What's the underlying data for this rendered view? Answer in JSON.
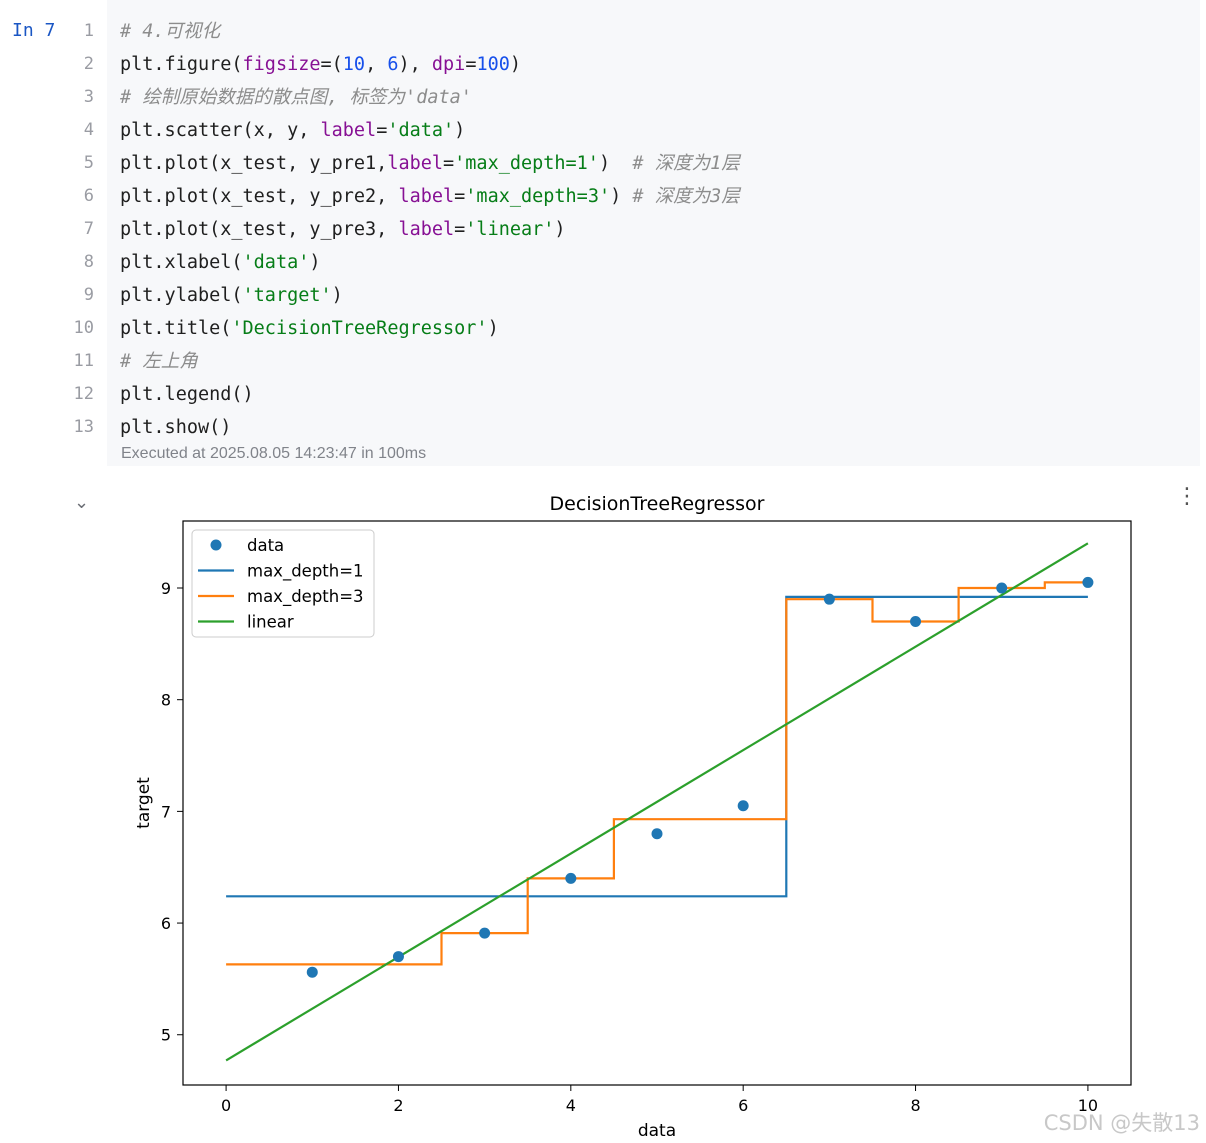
{
  "cell": {
    "prompt_label": "In",
    "exec_count": "7",
    "line_numbers": [
      "1",
      "2",
      "3",
      "4",
      "5",
      "6",
      "7",
      "8",
      "9",
      "10",
      "11",
      "12",
      "13"
    ],
    "lines": [
      [
        {
          "t": "# 4.可视化",
          "c": "cm"
        }
      ],
      [
        {
          "t": "plt.figure("
        },
        {
          "t": "figsize",
          "c": "kw"
        },
        {
          "t": "=("
        },
        {
          "t": "10",
          "c": "nu"
        },
        {
          "t": ", "
        },
        {
          "t": "6",
          "c": "nu"
        },
        {
          "t": "), "
        },
        {
          "t": "dpi",
          "c": "kw"
        },
        {
          "t": "="
        },
        {
          "t": "100",
          "c": "nu"
        },
        {
          "t": ")"
        }
      ],
      [
        {
          "t": "# 绘制原始数据的散点图, 标签为'data'",
          "c": "cm"
        }
      ],
      [
        {
          "t": "plt.scatter(x, y, "
        },
        {
          "t": "label",
          "c": "kw"
        },
        {
          "t": "="
        },
        {
          "t": "'data'",
          "c": "st"
        },
        {
          "t": ")"
        }
      ],
      [
        {
          "t": "plt.plot(x_test, y_pre1,"
        },
        {
          "t": "label",
          "c": "kw"
        },
        {
          "t": "="
        },
        {
          "t": "'max_depth=1'",
          "c": "st"
        },
        {
          "t": ")  "
        },
        {
          "t": "# 深度为1层",
          "c": "cm"
        }
      ],
      [
        {
          "t": "plt.plot(x_test, y_pre2, "
        },
        {
          "t": "label",
          "c": "kw"
        },
        {
          "t": "="
        },
        {
          "t": "'max_depth=3'",
          "c": "st"
        },
        {
          "t": ") "
        },
        {
          "t": "# 深度为3层",
          "c": "cm"
        }
      ],
      [
        {
          "t": "plt.plot(x_test, y_pre3, "
        },
        {
          "t": "label",
          "c": "kw"
        },
        {
          "t": "="
        },
        {
          "t": "'linear'",
          "c": "st"
        },
        {
          "t": ")"
        }
      ],
      [
        {
          "t": "plt.xlabel("
        },
        {
          "t": "'data'",
          "c": "st"
        },
        {
          "t": ")"
        }
      ],
      [
        {
          "t": "plt.ylabel("
        },
        {
          "t": "'target'",
          "c": "st"
        },
        {
          "t": ")"
        }
      ],
      [
        {
          "t": "plt.title("
        },
        {
          "t": "'DecisionTreeRegressor'",
          "c": "st"
        },
        {
          "t": ")"
        }
      ],
      [
        {
          "t": "# 左上角",
          "c": "cm"
        }
      ],
      [
        {
          "t": "plt.legend()"
        }
      ],
      [
        {
          "t": "plt.show()"
        }
      ]
    ],
    "exec_status": "Executed at 2025.08.05 14:23:47 in 100ms"
  },
  "icons": {
    "collapse": "chevron-down-icon",
    "menu": "more-vertical-icon"
  },
  "watermark": "CSDN @失散13",
  "chart_data": {
    "type": "line",
    "title": "DecisionTreeRegressor",
    "xlabel": "data",
    "ylabel": "target",
    "xlim": [
      -0.5,
      10.5
    ],
    "ylim": [
      4.55,
      9.6
    ],
    "xticks": [
      0,
      2,
      4,
      6,
      8,
      10
    ],
    "yticks": [
      5,
      6,
      7,
      8,
      9
    ],
    "legend": "top-left",
    "grid": false,
    "scatter": {
      "name": "data",
      "color": "#1f77b4",
      "x": [
        1,
        2,
        3,
        4,
        5,
        6,
        7,
        8,
        9,
        10
      ],
      "y": [
        5.56,
        5.7,
        5.91,
        6.4,
        6.8,
        7.05,
        8.9,
        8.7,
        9.0,
        9.05
      ]
    },
    "series": [
      {
        "name": "max_depth=1",
        "color": "#1f77b4",
        "steps": [
          [
            0,
            6.5,
            6.24
          ],
          [
            6.5,
            10,
            8.92
          ]
        ]
      },
      {
        "name": "max_depth=3",
        "color": "#ff7f0e",
        "steps": [
          [
            0,
            2.5,
            5.63
          ],
          [
            2.5,
            3.5,
            5.91
          ],
          [
            3.5,
            4.5,
            6.4
          ],
          [
            4.5,
            6.5,
            6.93
          ],
          [
            6.5,
            7.5,
            8.9
          ],
          [
            7.5,
            8.5,
            8.7
          ],
          [
            8.5,
            9.5,
            9.0
          ],
          [
            9.5,
            10,
            9.05
          ]
        ]
      },
      {
        "name": "linear",
        "color": "#2ca02c",
        "x": [
          0,
          10
        ],
        "y": [
          4.77,
          9.4
        ]
      }
    ]
  }
}
